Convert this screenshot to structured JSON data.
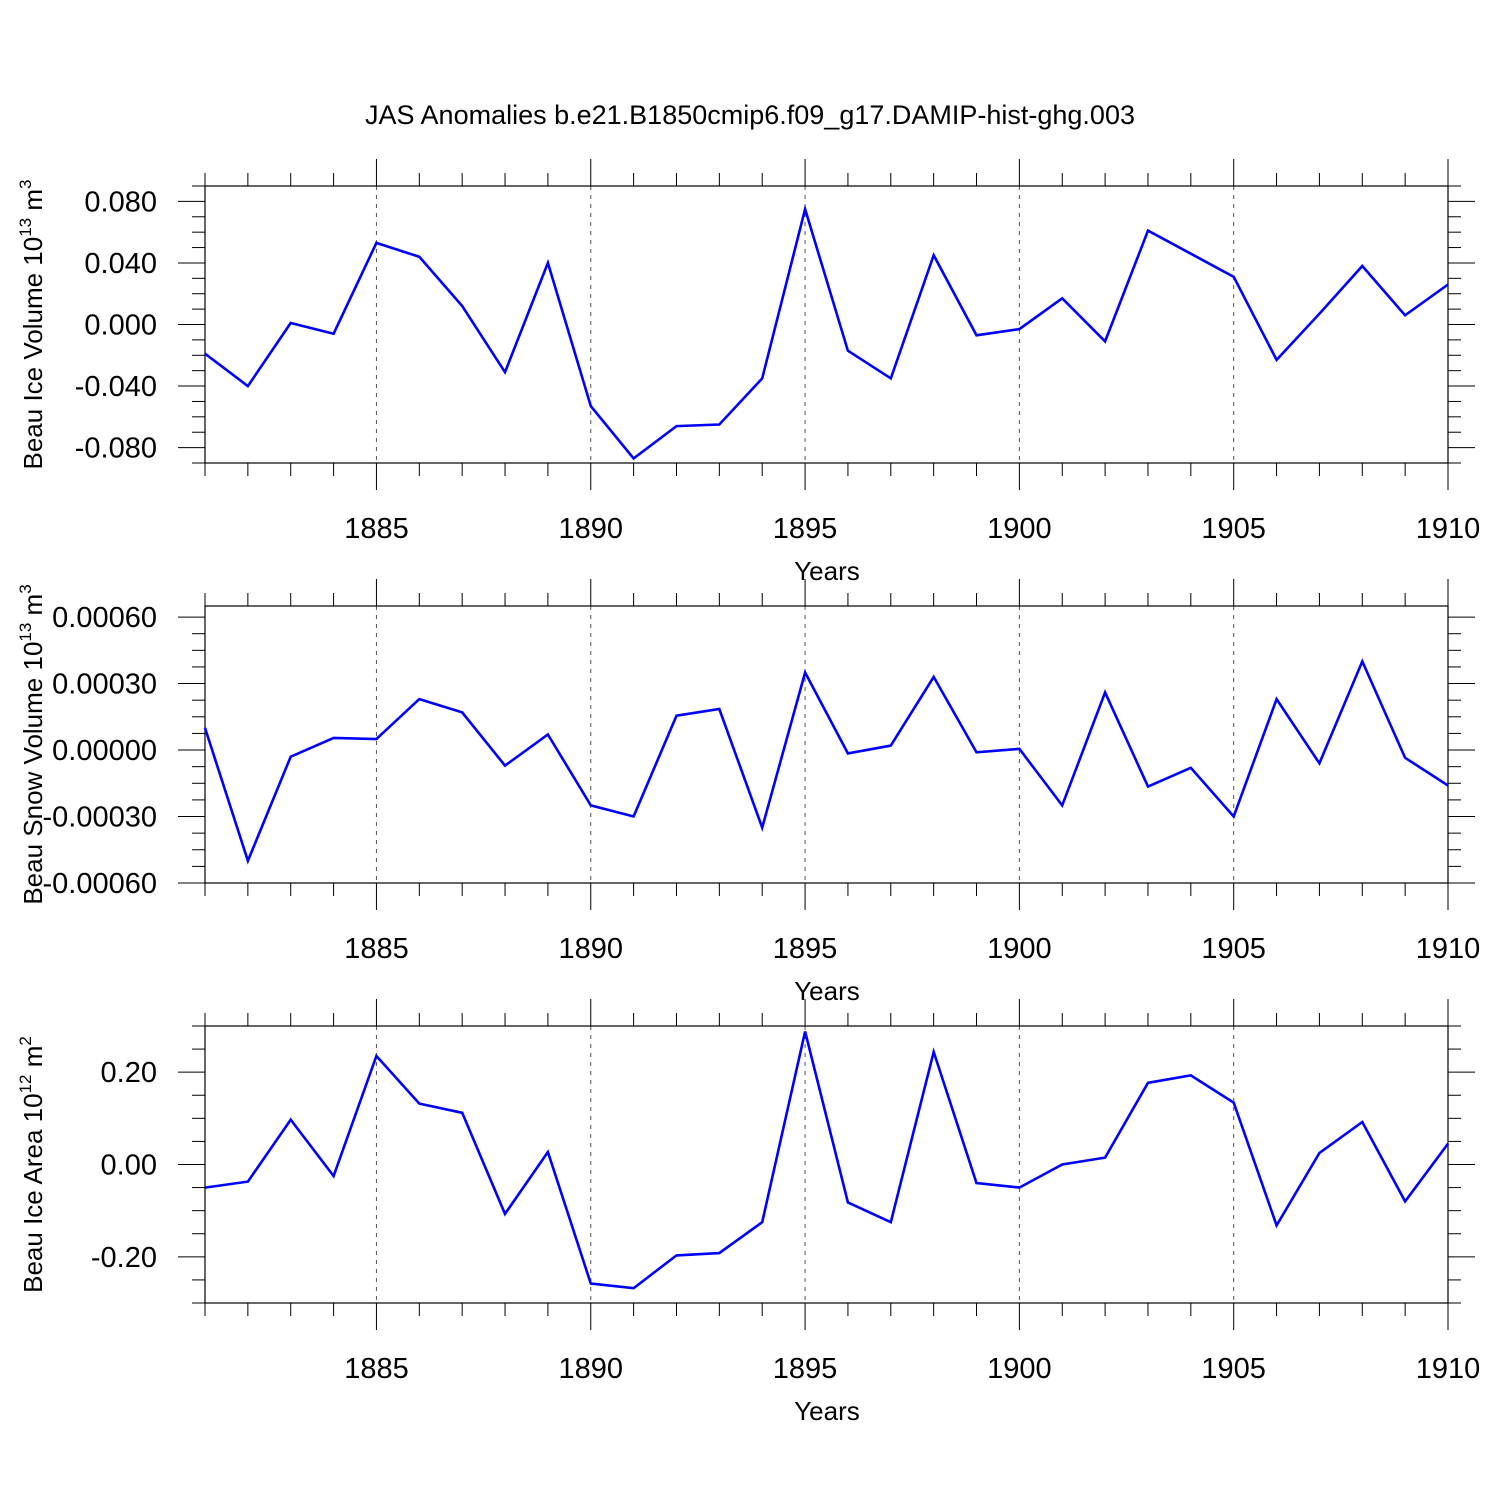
{
  "title": "JAS Anomalies b.e21.B1850cmip6.f09_g17.DAMIP-hist-ghg.003",
  "line_color": "#0000ff",
  "chart_data": [
    {
      "type": "line",
      "ylabel_main": "Beau Ice Volume 10",
      "ylabel_exp": "13",
      "ylabel_unit": " m",
      "ylabel_unit_exp": "3",
      "xlabel": "Years",
      "xlim": [
        1881,
        1910
      ],
      "ylim": [
        -0.09,
        0.09
      ],
      "yticks": [
        -0.08,
        -0.04,
        0.0,
        0.04,
        0.08
      ],
      "ytick_labels": [
        "-0.080",
        "-0.040",
        "0.000",
        "0.040",
        "0.080"
      ],
      "xticks": [
        1885,
        1890,
        1895,
        1900,
        1905,
        1910
      ],
      "xtick_labels": [
        "1885",
        "1890",
        "1895",
        "1900",
        "1905",
        "1910"
      ],
      "x": [
        1881,
        1882,
        1883,
        1884,
        1885,
        1886,
        1887,
        1888,
        1889,
        1890,
        1891,
        1892,
        1893,
        1894,
        1895,
        1896,
        1897,
        1898,
        1899,
        1900,
        1901,
        1902,
        1903,
        1904,
        1905,
        1906,
        1907,
        1908,
        1909,
        1910
      ],
      "y": [
        -0.019,
        -0.04,
        0.001,
        -0.006,
        0.053,
        0.044,
        0.012,
        -0.031,
        0.04,
        -0.053,
        -0.087,
        -0.066,
        -0.065,
        -0.035,
        0.075,
        -0.017,
        -0.035,
        0.045,
        -0.007,
        -0.003,
        0.017,
        -0.011,
        0.061,
        0.046,
        0.031,
        -0.023,
        0.007,
        0.038,
        0.006,
        0.026
      ]
    },
    {
      "type": "line",
      "ylabel_main": "Beau Snow Volume 10",
      "ylabel_exp": "13",
      "ylabel_unit": " m",
      "ylabel_unit_exp": "3",
      "xlabel": "Years",
      "xlim": [
        1881,
        1910
      ],
      "ylim": [
        -0.0006,
        0.00065
      ],
      "yticks": [
        -0.0006,
        -0.0003,
        0.0,
        0.0003,
        0.0006
      ],
      "ytick_labels": [
        "-0.00060",
        "-0.00030",
        "0.00000",
        "0.00030",
        "0.00060"
      ],
      "xticks": [
        1885,
        1890,
        1895,
        1900,
        1905,
        1910
      ],
      "xtick_labels": [
        "1885",
        "1890",
        "1895",
        "1900",
        "1905",
        "1910"
      ],
      "x": [
        1881,
        1882,
        1883,
        1884,
        1885,
        1886,
        1887,
        1888,
        1889,
        1890,
        1891,
        1892,
        1893,
        1894,
        1895,
        1896,
        1897,
        1898,
        1899,
        1900,
        1901,
        1902,
        1903,
        1904,
        1905,
        1906,
        1907,
        1908,
        1909,
        1910
      ],
      "y": [
        0.0001,
        -0.0005,
        -3e-05,
        5.5e-05,
        5e-05,
        0.00023,
        0.00017,
        -7e-05,
        7e-05,
        -0.00025,
        -0.0003,
        0.000155,
        0.000185,
        -0.00035,
        0.00035,
        -1.5e-05,
        2e-05,
        0.00033,
        -1e-05,
        5e-06,
        -0.00025,
        0.00026,
        -0.000165,
        -8e-05,
        -0.0003,
        0.00023,
        -6e-05,
        0.0004,
        -3.5e-05,
        -0.00016
      ]
    },
    {
      "type": "line",
      "ylabel_main": "Beau Ice Area 10",
      "ylabel_exp": "12",
      "ylabel_unit": " m",
      "ylabel_unit_exp": "2",
      "xlabel": "Years",
      "xlim": [
        1881,
        1910
      ],
      "ylim": [
        -0.3,
        0.3
      ],
      "yticks": [
        -0.2,
        0.0,
        0.2
      ],
      "ytick_labels": [
        "-0.20",
        "0.00",
        "0.20"
      ],
      "xticks": [
        1885,
        1890,
        1895,
        1900,
        1905,
        1910
      ],
      "xtick_labels": [
        "1885",
        "1890",
        "1895",
        "1900",
        "1905",
        "1910"
      ],
      "x": [
        1881,
        1882,
        1883,
        1884,
        1885,
        1886,
        1887,
        1888,
        1889,
        1890,
        1891,
        1892,
        1893,
        1894,
        1895,
        1896,
        1897,
        1898,
        1899,
        1900,
        1901,
        1902,
        1903,
        1904,
        1905,
        1906,
        1907,
        1908,
        1909,
        1910
      ],
      "y": [
        -0.05,
        -0.037,
        0.097,
        -0.025,
        0.235,
        0.132,
        0.112,
        -0.107,
        0.027,
        -0.258,
        -0.268,
        -0.197,
        -0.192,
        -0.125,
        0.288,
        -0.082,
        -0.125,
        0.244,
        -0.04,
        -0.05,
        0.0,
        0.015,
        0.177,
        0.193,
        0.134,
        -0.132,
        0.025,
        0.092,
        -0.08,
        0.045
      ]
    }
  ]
}
